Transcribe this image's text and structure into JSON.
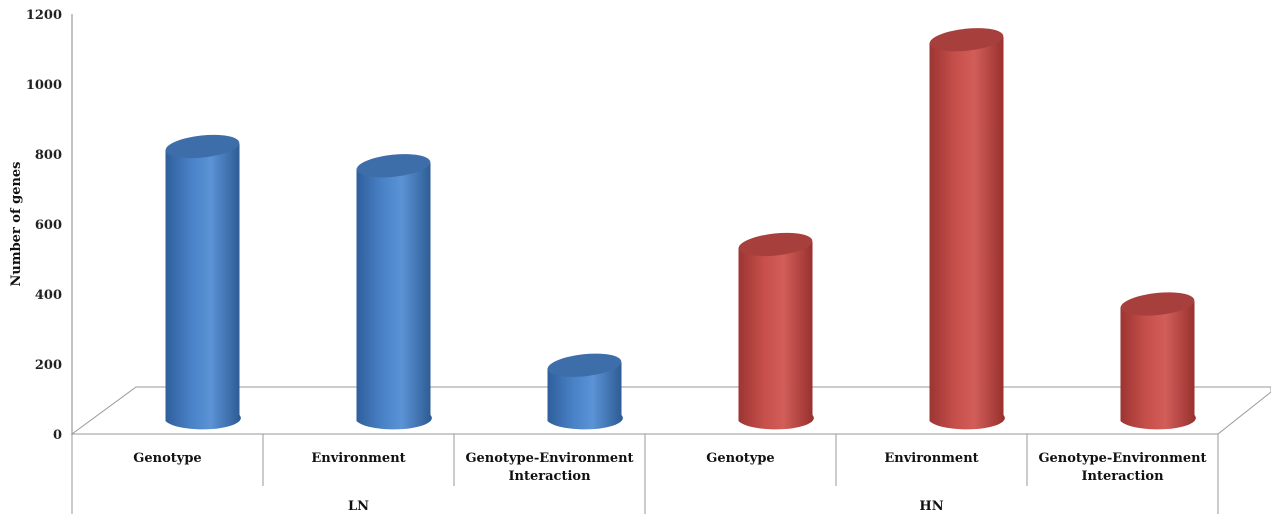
{
  "chart_data": {
    "type": "bar",
    "style": "3d-cylinder",
    "ylabel": "Number of genes",
    "ylim": [
      0,
      1200
    ],
    "yticks": [
      0,
      200,
      400,
      600,
      800,
      1000,
      1200
    ],
    "groups": [
      {
        "name": "LN",
        "color": "#4f86c6",
        "bars": [
          {
            "label": "Genotype",
            "value": 770
          },
          {
            "label": "Environment",
            "value": 715
          },
          {
            "label": "Genotype-Environment Interaction",
            "value": 145
          }
        ]
      },
      {
        "name": "HN",
        "color": "#c0504d",
        "bars": [
          {
            "label": "Genotype",
            "value": 490
          },
          {
            "label": "Environment",
            "value": 1075
          },
          {
            "label": "Genotype-Environment Interaction",
            "value": 320
          }
        ]
      }
    ],
    "legend": "none",
    "grid": false
  }
}
